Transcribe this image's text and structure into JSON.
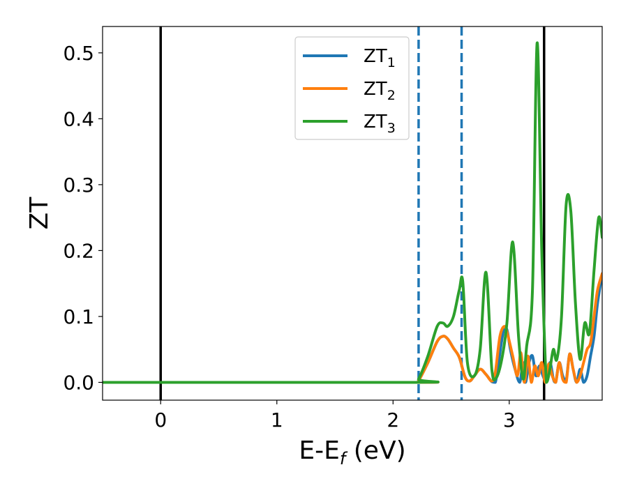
{
  "chart_data": {
    "type": "line",
    "xlabel": "E-E",
    "xlabel_sub": "f",
    "xlabel_unit": " (eV)",
    "ylabel": "ZT",
    "xlim": [
      -0.5,
      3.8
    ],
    "ylim": [
      -0.027,
      0.54
    ],
    "xticks": [
      0,
      1,
      2,
      3
    ],
    "yticks": [
      0.0,
      0.1,
      0.2,
      0.3,
      0.4,
      0.5
    ],
    "xtick_labels": [
      "0",
      "1",
      "2",
      "3"
    ],
    "ytick_labels": [
      "0.0",
      "0.1",
      "0.2",
      "0.3",
      "0.4",
      "0.5"
    ],
    "grid": false,
    "legend_position": "top-center",
    "vlines_solid": [
      0.0,
      3.3
    ],
    "vlines_dashed": [
      2.22,
      2.59
    ],
    "series": [
      {
        "name": "ZT",
        "name_sub": "1",
        "color": "#1f77b4",
        "x": [
          -0.5,
          2.18,
          2.22,
          2.3,
          2.38,
          2.43,
          2.47,
          2.52,
          2.57,
          2.62,
          2.66,
          2.7,
          2.75,
          2.8,
          2.85,
          2.88,
          2.9,
          2.95,
          2.98,
          3.01,
          3.05,
          3.09,
          3.12,
          3.14,
          3.17,
          3.2,
          3.23,
          3.26,
          3.29,
          3.32,
          3.35,
          3.38,
          3.4,
          3.43,
          3.46,
          3.49,
          3.52,
          3.55,
          3.58,
          3.61,
          3.64,
          3.67,
          3.7,
          3.73,
          3.76,
          3.8
        ],
        "y": [
          0.0,
          0.0,
          0.003,
          0.03,
          0.062,
          0.07,
          0.066,
          0.052,
          0.038,
          0.008,
          0.002,
          0.01,
          0.02,
          0.012,
          0.001,
          0.0,
          0.02,
          0.078,
          0.08,
          0.05,
          0.02,
          0.0,
          0.03,
          0.0,
          0.03,
          0.04,
          0.01,
          0.025,
          0.01,
          0.0,
          0.03,
          0.005,
          0.0,
          0.03,
          0.01,
          0.003,
          0.043,
          0.02,
          0.0,
          0.02,
          0.0,
          0.01,
          0.04,
          0.07,
          0.12,
          0.165
        ]
      },
      {
        "name": "ZT",
        "name_sub": "2",
        "color": "#ff7f0e",
        "x": [
          -0.5,
          2.18,
          2.22,
          2.3,
          2.38,
          2.43,
          2.47,
          2.52,
          2.57,
          2.62,
          2.66,
          2.7,
          2.75,
          2.8,
          2.85,
          2.88,
          2.92,
          2.96,
          2.99,
          3.03,
          3.07,
          3.1,
          3.13,
          3.16,
          3.19,
          3.22,
          3.25,
          3.28,
          3.31,
          3.34,
          3.37,
          3.4,
          3.43,
          3.46,
          3.49,
          3.52,
          3.55,
          3.58,
          3.61,
          3.64,
          3.67,
          3.7,
          3.73,
          3.76,
          3.8
        ],
        "y": [
          0.0,
          0.0,
          0.003,
          0.03,
          0.062,
          0.07,
          0.066,
          0.052,
          0.038,
          0.008,
          0.002,
          0.01,
          0.02,
          0.012,
          0.002,
          0.015,
          0.07,
          0.085,
          0.07,
          0.04,
          0.01,
          0.045,
          0.0,
          0.04,
          0.0,
          0.025,
          0.01,
          0.03,
          0.0,
          0.028,
          0.01,
          0.0,
          0.03,
          0.005,
          0.0,
          0.043,
          0.02,
          0.0,
          0.01,
          0.03,
          0.05,
          0.06,
          0.1,
          0.14,
          0.165
        ]
      },
      {
        "name": "ZT",
        "name_sub": "3",
        "color": "#2ca02c",
        "x": [
          -0.5,
          2.18,
          2.22,
          2.3,
          2.38,
          2.43,
          2.47,
          2.52,
          2.57,
          2.6,
          2.64,
          2.7,
          2.75,
          2.8,
          2.85,
          2.88,
          2.93,
          2.98,
          3.03,
          3.08,
          3.12,
          3.15,
          3.2,
          3.24,
          3.28,
          3.32,
          3.35,
          3.38,
          3.41,
          3.45,
          3.49,
          3.53,
          3.57,
          3.61,
          3.65,
          3.69,
          3.73,
          3.77,
          3.8
        ],
        "y": [
          0.0,
          0.0,
          0.005,
          0.04,
          0.085,
          0.09,
          0.085,
          0.1,
          0.14,
          0.153,
          0.03,
          0.01,
          0.05,
          0.167,
          0.02,
          0.005,
          0.03,
          0.09,
          0.213,
          0.07,
          0.005,
          0.055,
          0.14,
          0.515,
          0.2,
          0.0,
          0.02,
          0.05,
          0.035,
          0.1,
          0.27,
          0.26,
          0.12,
          0.035,
          0.09,
          0.075,
          0.17,
          0.25,
          0.22
        ]
      }
    ]
  }
}
